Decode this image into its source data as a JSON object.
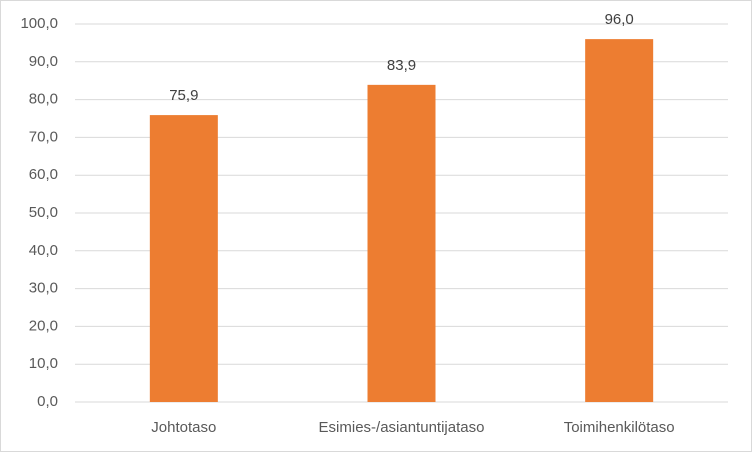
{
  "chart_data": {
    "type": "bar",
    "categories": [
      "Johtotaso",
      "Esimies-/asiantuntijataso",
      "Toimihenkilötaso"
    ],
    "values": [
      75.9,
      83.9,
      96.0
    ],
    "value_labels": [
      "75,9",
      "83,9",
      "96,0"
    ],
    "color": "#ed7d31",
    "ylim": [
      0,
      100
    ],
    "yticks": [
      {
        "value": 0,
        "label": "0,0"
      },
      {
        "value": 10,
        "label": "10,0"
      },
      {
        "value": 20,
        "label": "20,0"
      },
      {
        "value": 30,
        "label": "30,0"
      },
      {
        "value": 40,
        "label": "40,0"
      },
      {
        "value": 50,
        "label": "50,0"
      },
      {
        "value": 60,
        "label": "60,0"
      },
      {
        "value": 70,
        "label": "70,0"
      },
      {
        "value": 80,
        "label": "80,0"
      },
      {
        "value": 90,
        "label": "90,0"
      },
      {
        "value": 100,
        "label": "100,0"
      }
    ],
    "grid": true
  }
}
